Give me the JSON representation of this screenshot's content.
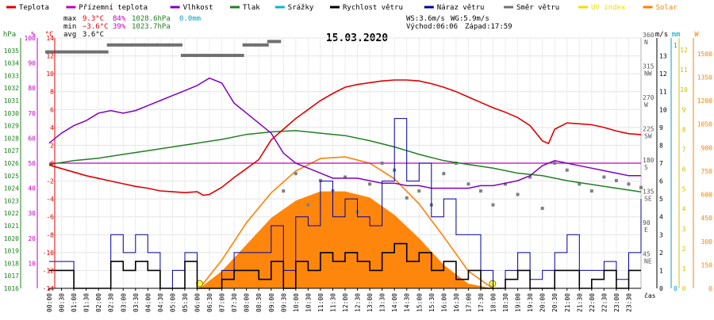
{
  "chart_data": {
    "type": "line",
    "title": "15.03.2020",
    "legend": [
      {
        "label": "Teplota",
        "color": "#e00000"
      },
      {
        "label": "Přízemní teplota",
        "color": "#c000c0"
      },
      {
        "label": "Vlhkost",
        "color": "#8000c0"
      },
      {
        "label": "Tlak",
        "color": "#208020"
      },
      {
        "label": "Srážky",
        "color": "#00b8d0"
      },
      {
        "label": "Rychlost větru",
        "color": "#000000"
      },
      {
        "label": "Náraz větru",
        "color": "#0000a0"
      },
      {
        "label": "Směr větru",
        "color": "#707070"
      },
      {
        "label": "UV index",
        "color": "#f0e000"
      },
      {
        "label": "Solar",
        "color": "#ff8000"
      }
    ],
    "stats": {
      "max": {
        "label": "max",
        "temp": "9.3°C",
        "hum": "84%",
        "press": "1028.6hPa",
        "rain": "0.0mm"
      },
      "min": {
        "label": "min",
        "temp": "−3.6°C",
        "hum": "39%",
        "press": "1023.7hPa"
      },
      "avg": {
        "label": "avg",
        "temp": "3.6°C"
      }
    },
    "wind_summary": {
      "ws": "WS:3.6m/s",
      "wg": "WG:5.9m/s",
      "sunrise": "Východ:06:06",
      "sunset": "Západ:17:59"
    },
    "axes": {
      "hpa": {
        "title": "hPa",
        "color": "#208020",
        "range": [
          1016,
          1036
        ],
        "ticks": [
          1016,
          1017,
          1018,
          1019,
          1020,
          1021,
          1022,
          1023,
          1024,
          1025,
          1026,
          1027,
          1028,
          1029,
          1030,
          1031,
          1032,
          1033,
          1034,
          1035
        ]
      },
      "pct": {
        "title": "%",
        "color": "#c000c0",
        "range": [
          0,
          100
        ],
        "ticks": [
          10,
          20,
          30,
          40,
          50,
          60,
          70,
          80,
          90,
          100
        ]
      },
      "degc": {
        "title": "°C",
        "color": "#e00000",
        "range": [
          -14,
          14
        ],
        "ticks": [
          -14,
          -12,
          -10,
          -8,
          -6,
          -4,
          -2,
          0,
          2,
          4,
          6,
          8,
          10,
          12,
          14
        ]
      },
      "ms": {
        "title": "m/s",
        "color": "#000000",
        "range": [
          0,
          14
        ],
        "ticks": [
          0,
          1,
          2,
          3,
          4,
          5,
          6,
          7,
          8,
          9,
          10,
          11,
          12,
          13
        ]
      },
      "mm": {
        "title": "mm",
        "color": "#00a0c0",
        "ticks": [
          "0",
          "1"
        ]
      },
      "uv": {
        "title": "",
        "color": "#d0c000",
        "ticks": [
          "0",
          "1",
          "2",
          "3",
          "4",
          "5",
          "6",
          "7",
          "8",
          "9",
          "10",
          "11",
          "12"
        ]
      },
      "wm2": {
        "title": "W",
        "color": "#ff8000",
        "ticks": [
          0,
          150,
          300,
          450,
          600,
          750,
          900,
          1050,
          1200,
          1350,
          1500
        ]
      },
      "dir": [
        {
          "deg": 360,
          "label": "N"
        },
        {
          "deg": 315,
          "label": "NW"
        },
        {
          "deg": 270,
          "label": "W"
        },
        {
          "deg": 225,
          "label": "SW"
        },
        {
          "deg": 180,
          "label": "S"
        },
        {
          "deg": 135,
          "label": "SE"
        },
        {
          "deg": 90,
          "label": "E"
        },
        {
          "deg": 45,
          "label": "NE"
        }
      ],
      "x_label": "čas",
      "x_ticks": [
        "00:00",
        "00:30",
        "01:00",
        "01:30",
        "02:00",
        "02:30",
        "03:00",
        "03:30",
        "04:00",
        "04:30",
        "05:00",
        "05:30",
        "06:00",
        "06:30",
        "07:00",
        "07:30",
        "08:00",
        "08:30",
        "09:00",
        "09:30",
        "10:00",
        "10:30",
        "11:00",
        "11:30",
        "12:00",
        "12:30",
        "13:00",
        "13:30",
        "14:00",
        "14:30",
        "15:00",
        "15:30",
        "16:00",
        "16:30",
        "17:00",
        "17:30",
        "18:00",
        "18:30",
        "19:00",
        "19:30",
        "20:00",
        "20:30",
        "21:00",
        "21:30",
        "22:00",
        "22:30",
        "23:00",
        "23:30"
      ]
    },
    "series": [
      {
        "name": "Teplota",
        "unit": "°C",
        "x": [
          0,
          0.5,
          1,
          1.5,
          2,
          2.5,
          3,
          3.5,
          4,
          4.5,
          5,
          5.5,
          6,
          6.25,
          6.5,
          7,
          7.5,
          8,
          8.5,
          9,
          9.5,
          10,
          10.5,
          11,
          11.5,
          12,
          12.5,
          13,
          13.5,
          14,
          14.5,
          15,
          15.5,
          16,
          16.5,
          17,
          17.5,
          18,
          18.5,
          19,
          19.5,
          20,
          20.25,
          20.5,
          21,
          21.5,
          22,
          22.5,
          23,
          23.5,
          24
        ],
        "y": [
          -0.2,
          -0.6,
          -1.0,
          -1.4,
          -1.7,
          -2.0,
          -2.3,
          -2.6,
          -2.8,
          -3.1,
          -3.2,
          -3.3,
          -3.2,
          -3.6,
          -3.5,
          -2.7,
          -1.6,
          -0.6,
          0.4,
          2.6,
          3.8,
          5.0,
          6.0,
          7.0,
          7.8,
          8.5,
          8.8,
          9.0,
          9.2,
          9.3,
          9.3,
          9.2,
          8.9,
          8.5,
          8.0,
          7.4,
          6.8,
          6.2,
          5.7,
          5.1,
          4.2,
          2.5,
          2.2,
          3.8,
          4.5,
          4.4,
          4.3,
          4.0,
          3.6,
          3.3,
          3.2
        ]
      },
      {
        "name": "Vlhkost",
        "unit": "%",
        "x": [
          0,
          0.5,
          1,
          1.5,
          2,
          2.5,
          3,
          3.5,
          4,
          4.5,
          5,
          5.5,
          6,
          6.5,
          7,
          7.5,
          8,
          8.5,
          9,
          9.5,
          10,
          10.5,
          11,
          11.5,
          12,
          12.5,
          13,
          13.5,
          14,
          14.5,
          15,
          15.5,
          16,
          16.5,
          17,
          17.5,
          18,
          18.5,
          19,
          19.5,
          20,
          20.5,
          21,
          21.5,
          22,
          22.5,
          23,
          23.5,
          24
        ],
        "y": [
          58,
          62,
          65,
          67,
          70,
          71,
          70,
          71,
          73,
          75,
          77,
          79,
          81,
          84,
          82,
          74,
          70,
          66,
          62,
          54,
          50,
          48,
          46,
          44,
          44,
          44,
          43,
          42,
          42,
          41,
          41,
          40,
          40,
          40,
          40,
          41,
          41,
          42,
          43,
          45,
          49,
          51,
          50,
          49,
          48,
          47,
          46,
          45,
          45
        ]
      },
      {
        "name": "Tlak",
        "unit": "hPa",
        "x": [
          0,
          1,
          2,
          3,
          4,
          5,
          6,
          7,
          8,
          9,
          10,
          11,
          12,
          13,
          14,
          15,
          16,
          17,
          18,
          19,
          20,
          21,
          22,
          23,
          24
        ],
        "y": [
          1025.9,
          1026.2,
          1026.4,
          1026.7,
          1027.0,
          1027.3,
          1027.6,
          1027.9,
          1028.3,
          1028.5,
          1028.6,
          1028.4,
          1028.2,
          1027.8,
          1027.3,
          1026.7,
          1026.2,
          1025.9,
          1025.6,
          1025.2,
          1025.0,
          1024.6,
          1024.3,
          1024.0,
          1023.7
        ]
      },
      {
        "name": "Přízemní teplota",
        "unit": "°C",
        "x": [
          0,
          24
        ],
        "y": [
          0,
          0
        ]
      },
      {
        "name": "Solar",
        "unit": "W/m²",
        "x": [
          6.1,
          7,
          8,
          9,
          10,
          11,
          12,
          13,
          14,
          15,
          16,
          17,
          17.98
        ],
        "y": [
          0,
          110,
          280,
          450,
          560,
          620,
          620,
          580,
          470,
          320,
          150,
          30,
          0
        ]
      },
      {
        "name": "Solar (clear sky)",
        "unit": "W/m²",
        "x": [
          6.1,
          7,
          8,
          9,
          10,
          11,
          12,
          13,
          14,
          15,
          16,
          17,
          17.98
        ],
        "y": [
          0,
          180,
          420,
          610,
          750,
          830,
          840,
          800,
          700,
          540,
          330,
          110,
          0
        ]
      },
      {
        "name": "Rychlost větru",
        "unit": "m/s",
        "x": [
          0,
          1,
          2,
          2.5,
          3,
          3.5,
          4,
          4.5,
          5,
          5.5,
          6,
          6.5,
          7,
          7.5,
          8,
          8.5,
          9,
          9.5,
          10,
          10.5,
          11,
          11.5,
          12,
          12.5,
          13,
          13.5,
          14,
          14.5,
          15,
          15.5,
          16,
          16.5,
          17,
          17.5,
          18,
          18.5,
          19,
          19.5,
          20,
          20.5,
          21,
          21.5,
          22,
          22.5,
          23,
          23.5,
          24
        ],
        "y": [
          1,
          0,
          0,
          1.5,
          1,
          1.5,
          1,
          0,
          0,
          1.5,
          0,
          0,
          0.5,
          1,
          1,
          0.5,
          1.5,
          0,
          1.5,
          1,
          2,
          1.5,
          2,
          1.5,
          1,
          2,
          2.5,
          1.5,
          2,
          1,
          1.5,
          0.5,
          1,
          0,
          0,
          0.5,
          1,
          0,
          0,
          1,
          1,
          0,
          0.5,
          1,
          0,
          1,
          1
        ]
      },
      {
        "name": "Náraz větru",
        "unit": "m/s",
        "x": [
          0,
          1,
          2,
          2.5,
          3,
          3.5,
          4,
          4.5,
          5,
          5.5,
          6,
          6.5,
          7,
          7.5,
          8,
          8.5,
          9,
          9.5,
          10,
          10.5,
          11,
          11.5,
          12,
          12.5,
          13,
          13.5,
          14,
          14.5,
          15,
          15.5,
          16,
          16.5,
          17,
          17.5,
          18,
          18.5,
          19,
          19.5,
          20,
          20.5,
          21,
          21.5,
          22,
          22.5,
          23,
          23.5,
          24
        ],
        "y": [
          1.5,
          0,
          0,
          3,
          2,
          3,
          2,
          0,
          1,
          2,
          0,
          0,
          1,
          2,
          2,
          2,
          3.5,
          1,
          4,
          3.5,
          6,
          4,
          5,
          4,
          3.5,
          6,
          9.5,
          6,
          7,
          4,
          5,
          3,
          3,
          1,
          0,
          1,
          2,
          0.5,
          1,
          2,
          3,
          1,
          1,
          1.5,
          0.5,
          2,
          5
        ]
      },
      {
        "name": "Směr větru",
        "unit": "°",
        "x": [
          0,
          0.5,
          1,
          1.5,
          2,
          2.5,
          3,
          3.5,
          4,
          4.5,
          5,
          5.5,
          6,
          6.5,
          7,
          7.5,
          8,
          8.5,
          9,
          9.5,
          10,
          10.5,
          11,
          11.5,
          12,
          12.5,
          13,
          13.5,
          14,
          14.5,
          15,
          15.5,
          16,
          16.5,
          17,
          17.5,
          18,
          18.5,
          19,
          19.5,
          20,
          20.5,
          21,
          21.5,
          22,
          22.5,
          23,
          23.5,
          24
        ],
        "y": [
          340,
          340,
          340,
          340,
          340,
          350,
          350,
          350,
          350,
          350,
          350,
          335,
          335,
          335,
          335,
          335,
          350,
          350,
          355,
          140,
          165,
          120,
          155,
          140,
          160,
          110,
          150,
          180,
          170,
          130,
          140,
          120,
          165,
          180,
          150,
          140,
          120,
          150,
          135,
          160,
          115,
          180,
          170,
          150,
          140,
          160,
          155,
          150,
          145
        ]
      }
    ]
  }
}
